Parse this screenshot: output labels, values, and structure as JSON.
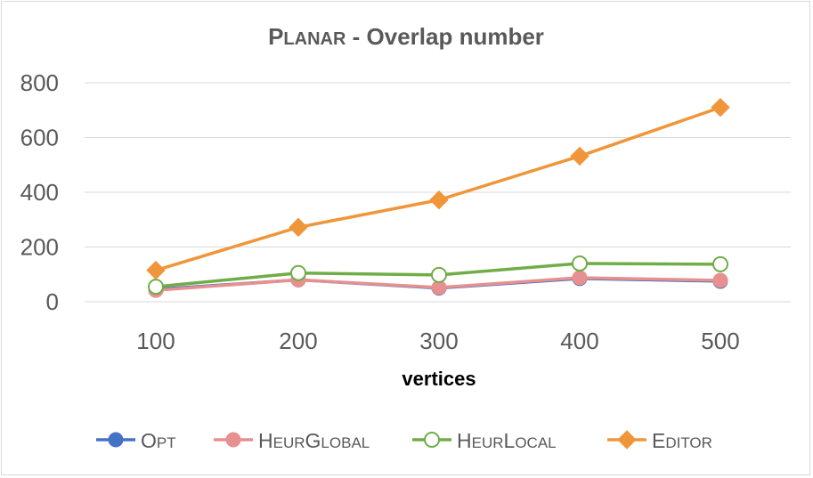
{
  "chart_data": {
    "type": "line",
    "title_parts": [
      {
        "text": "P",
        "small": false
      },
      {
        "text": "LANAR",
        "small": true
      },
      {
        "text": " - Overlap number",
        "small": false
      }
    ],
    "xlabel": "vertices",
    "ylabel": "",
    "categories": [
      "100",
      "200",
      "300",
      "400",
      "500"
    ],
    "ylim": [
      0,
      800
    ],
    "yticks": [
      0,
      200,
      400,
      600,
      800
    ],
    "grid": true,
    "legend_position": "bottom",
    "series": [
      {
        "name_parts": [
          {
            "text": "O",
            "small": false
          },
          {
            "text": "PT",
            "small": true
          }
        ],
        "color": "#4472c4",
        "marker": "circle-filled",
        "values": [
          45,
          80,
          50,
          85,
          75
        ]
      },
      {
        "name_parts": [
          {
            "text": "H",
            "small": false
          },
          {
            "text": "EUR",
            "small": true
          },
          {
            "text": "G",
            "small": false
          },
          {
            "text": "LOBAL",
            "small": true
          }
        ],
        "color": "#e6908f",
        "marker": "circle-filled",
        "values": [
          42,
          80,
          52,
          88,
          78
        ]
      },
      {
        "name_parts": [
          {
            "text": "H",
            "small": false
          },
          {
            "text": "EUR",
            "small": true
          },
          {
            "text": "L",
            "small": false
          },
          {
            "text": "OCAL",
            "small": true
          }
        ],
        "color": "#70ad47",
        "marker": "circle-open",
        "values": [
          55,
          105,
          98,
          140,
          137
        ]
      },
      {
        "name_parts": [
          {
            "text": "E",
            "small": false
          },
          {
            "text": "DITOR",
            "small": true
          }
        ],
        "color": "#f0963a",
        "marker": "diamond",
        "values": [
          115,
          272,
          372,
          532,
          710
        ]
      }
    ]
  }
}
